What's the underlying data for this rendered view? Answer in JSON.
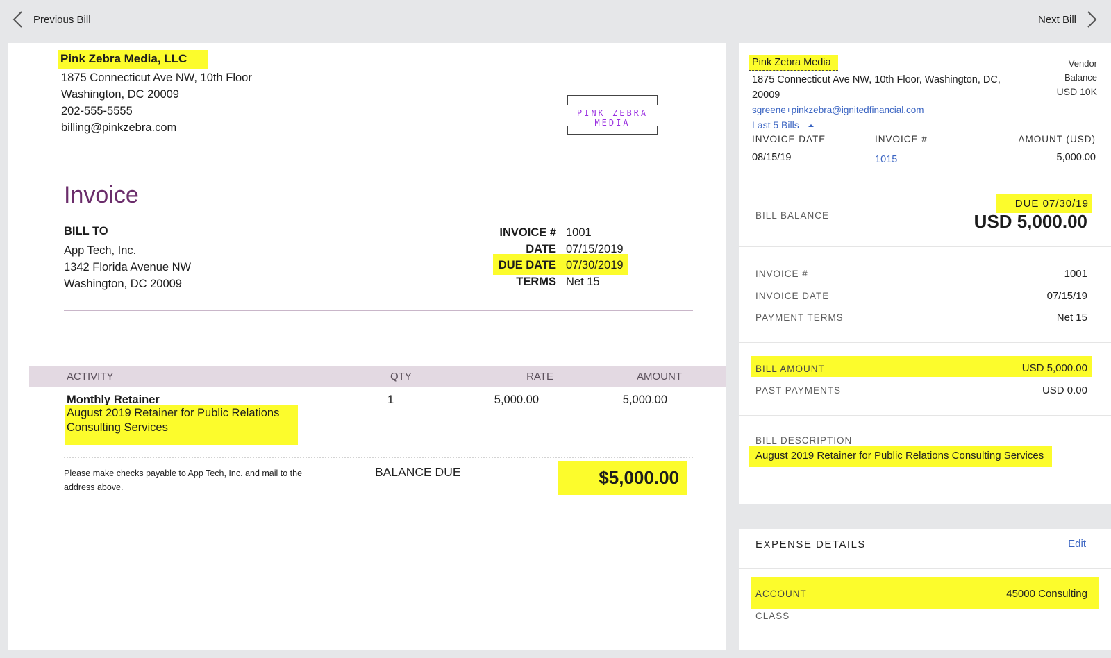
{
  "nav": {
    "previous": "Previous Bill",
    "next": "Next Bill"
  },
  "invoice_doc": {
    "vendor_name": "Pink Zebra Media, LLC",
    "vendor_address": [
      "1875 Connecticut Ave NW, 10th Floor",
      "Washington, DC  20009",
      "202-555-5555",
      "billing@pinkzebra.com"
    ],
    "logo_text": "PINK ZEBRA MEDIA",
    "title": "Invoice",
    "bill_to_label": "BILL TO",
    "bill_to": [
      "App Tech, Inc.",
      "1342 Florida Avenue NW",
      "Washington, DC 20009"
    ],
    "meta": {
      "invoice_no_label": "INVOICE #",
      "invoice_no": "1001",
      "date_label": "DATE",
      "date": "07/15/2019",
      "due_label": "DUE DATE",
      "due": "07/30/2019",
      "terms_label": "TERMS",
      "terms": "Net 15"
    },
    "columns": {
      "activity": "ACTIVITY",
      "qty": "QTY",
      "rate": "RATE",
      "amount": "AMOUNT"
    },
    "line": {
      "name": "Monthly Retainer",
      "description": "August 2019 Retainer for Public Relations Consulting Services",
      "qty": "1",
      "rate": "5,000.00",
      "amount": "5,000.00"
    },
    "payment_note": [
      "Please make checks payable to App Tech, Inc. and mail to the",
      "address above."
    ],
    "balance_label": "BALANCE DUE",
    "balance": "$5,000.00"
  },
  "panel": {
    "vendor_name": "Pink Zebra Media",
    "vendor_address": "1875 Connecticut Ave NW, 10th Floor, Washington, DC, 20009",
    "vendor_email": "sgreene+pinkzebra@ignitedfinancial.com",
    "last_bills_link": "Last 5 Bills",
    "vendor_balance_label_1": "Vendor",
    "vendor_balance_label_2": "Balance",
    "vendor_balance": "USD 10K",
    "history_headers": {
      "date": "INVOICE DATE",
      "invoice": "INVOICE #",
      "amount": "AMOUNT (USD)"
    },
    "history": [
      {
        "date": "08/15/19",
        "invoice": "1015",
        "amount": "5,000.00"
      }
    ],
    "due": "DUE 07/30/19",
    "bill_balance_label": "BILL BALANCE",
    "bill_balance": "USD 5,000.00",
    "invoice_no_label": "INVOICE #",
    "invoice_no": "1001",
    "invoice_date_label": "INVOICE DATE",
    "invoice_date": "07/15/19",
    "payment_terms_label": "PAYMENT TERMS",
    "payment_terms": "Net 15",
    "bill_amount_label": "BILL AMOUNT",
    "bill_amount": "USD 5,000.00",
    "past_payments_label": "PAST PAYMENTS",
    "past_payments": "USD 0.00",
    "description_label": "BILL DESCRIPTION",
    "description": "August 2019 Retainer for Public Relations Consulting Services",
    "expense_title": "EXPENSE DETAILS",
    "edit_label": "Edit",
    "account_label": "ACCOUNT",
    "account": "45000 Consulting",
    "class_label": "CLASS"
  },
  "colors": {
    "highlight": "#fcfc2c",
    "link": "#3a64c2",
    "title_purple": "#6b2d6b",
    "logo_purple": "#9a30e0"
  }
}
